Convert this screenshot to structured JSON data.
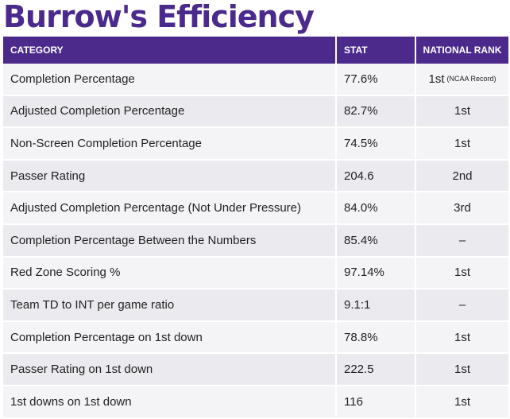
{
  "title": "Burrow's Efficiency",
  "columns": [
    "CATEGORY",
    "STAT",
    "NATIONAL RANK"
  ],
  "rows": [
    {
      "category": "Completion Percentage",
      "stat": "77.6%",
      "rank": "1st",
      "rank_note": "(NCAA Record)"
    },
    {
      "category": "Adjusted Completion Percentage",
      "stat": "82.7%",
      "rank": "1st",
      "rank_note": ""
    },
    {
      "category": "Non-Screen Completion Percentage",
      "stat": "74.5%",
      "rank": "1st",
      "rank_note": ""
    },
    {
      "category": "Passer Rating",
      "stat": "204.6",
      "rank": "2nd",
      "rank_note": ""
    },
    {
      "category": "Adjusted Completion Percentage (Not Under Pressure)",
      "stat": "84.0%",
      "rank": "3rd",
      "rank_note": ""
    },
    {
      "category": "Completion Percentage Between the Numbers",
      "stat": "85.4%",
      "rank": "–",
      "rank_note": ""
    },
    {
      "category": "Red Zone Scoring %",
      "stat": "97.14%",
      "rank": "1st",
      "rank_note": ""
    },
    {
      "category": "Team TD to INT per game ratio",
      "stat": "9.1:1",
      "rank": "–",
      "rank_note": ""
    },
    {
      "category": "Completion Percentage on 1st down",
      "stat": "78.8%",
      "rank": "1st",
      "rank_note": ""
    },
    {
      "category": "Passer Rating on 1st down",
      "stat": "222.5",
      "rank": "1st",
      "rank_note": ""
    },
    {
      "category": "1st downs on 1st down",
      "stat": "116",
      "rank": "1st",
      "rank_note": ""
    }
  ],
  "colors": {
    "title": "#4a2a8c",
    "header_bg": "#4b2a8c",
    "row_light": "#f4f3f6",
    "row_dark": "#ebeaee"
  }
}
